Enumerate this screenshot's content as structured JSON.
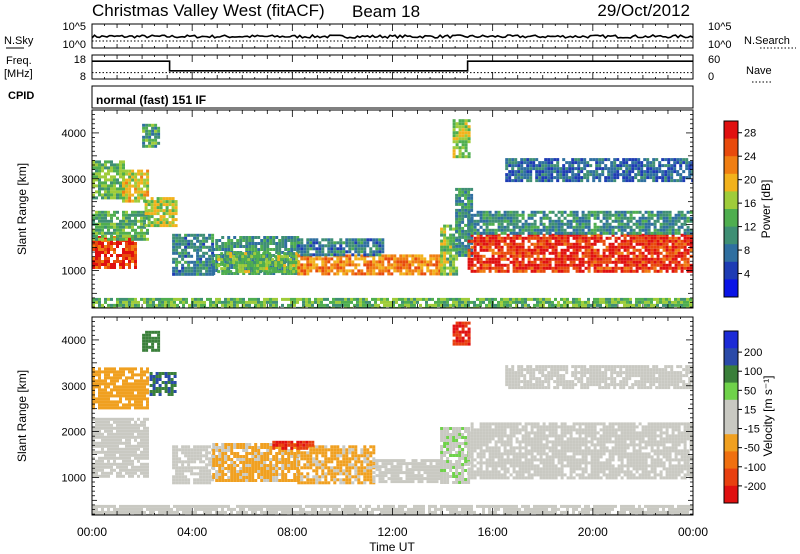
{
  "header": {
    "station": "Christmas Valley West (fitACF)",
    "beam": "Beam 18",
    "date": "29/Oct/2012"
  },
  "colors": {
    "power_scale": [
      "#0a14e6",
      "#1e3cb4",
      "#2f6fa0",
      "#3f8f74",
      "#4fae4f",
      "#9fcc3a",
      "#f2b21c",
      "#f07e12",
      "#e84a0c",
      "#e01010"
    ],
    "velocity_scale": [
      "#1c2bd6",
      "#2b4aa8",
      "#3a7f3a",
      "#6fd24a",
      "#c9c9c2",
      "#c9c9c2",
      "#f0a020",
      "#f07010",
      "#e84010",
      "#e01010"
    ]
  },
  "chart_data": [
    {
      "type": "line",
      "panel": "noise",
      "left_label": "N.Sky",
      "left_ticks": [
        "10^5",
        "10^0"
      ],
      "right_label": "N.Search",
      "right_ticks": [
        "10^5",
        "10^0"
      ],
      "series": [
        {
          "name": "N.Sky",
          "style": "solid"
        },
        {
          "name": "N.Search",
          "style": "dotted"
        }
      ]
    },
    {
      "type": "line",
      "panel": "frequency",
      "left_label_line1": "Freq.",
      "left_label_line2": "[MHz]",
      "left_ticks": [
        "18",
        "8"
      ],
      "left_ylim": [
        8,
        18
      ],
      "right_label": "Nave",
      "right_ticks": [
        "60",
        "0"
      ],
      "right_ylim": [
        0,
        60
      ],
      "x": [
        0,
        3.1,
        3.1,
        15.0,
        15.0,
        24
      ],
      "freq_mhz": [
        15.4,
        15.4,
        11.4,
        11.4,
        15.4,
        15.4
      ],
      "nave": [
        16,
        16,
        16,
        16,
        16,
        16
      ]
    },
    {
      "type": "text",
      "panel": "cpid",
      "label": "CPID",
      "value": "normal (fast) 151 IF"
    },
    {
      "type": "heatmap",
      "panel": "power",
      "ylabel": "Slant Range [km]",
      "yticks": [
        "1000",
        "2000",
        "3000",
        "4000"
      ],
      "ylim": [
        180,
        4500
      ],
      "xlim": [
        0,
        24
      ],
      "colorbar_label": "Power [dB]",
      "colorbar_ticks": [
        "4",
        "8",
        "12",
        "16",
        "20",
        "24",
        "28"
      ],
      "colorbar_range": [
        0,
        30
      ],
      "regions": [
        {
          "t0": 0.0,
          "t1": 1.7,
          "r0": 1050,
          "r1": 1750,
          "value": 26
        },
        {
          "t0": 0.0,
          "t1": 2.2,
          "r0": 1700,
          "r1": 2300,
          "value": 13
        },
        {
          "t0": 0.0,
          "t1": 1.2,
          "r0": 2600,
          "r1": 3400,
          "value": 14
        },
        {
          "t0": 1.2,
          "t1": 2.2,
          "r0": 2500,
          "r1": 3200,
          "value": 18
        },
        {
          "t0": 2.0,
          "t1": 2.6,
          "r0": 3700,
          "r1": 4200,
          "value": 12
        },
        {
          "t0": 2.1,
          "t1": 3.4,
          "r0": 2000,
          "r1": 2600,
          "value": 17
        },
        {
          "t0": 3.2,
          "t1": 4.8,
          "r0": 900,
          "r1": 1800,
          "value": 9
        },
        {
          "t0": 4.8,
          "t1": 8.2,
          "r0": 900,
          "r1": 1750,
          "value": 11
        },
        {
          "t0": 5.0,
          "t1": 8.2,
          "r0": 1000,
          "r1": 1400,
          "value": 15
        },
        {
          "t0": 8.2,
          "t1": 13.9,
          "r0": 900,
          "r1": 1350,
          "value": 22
        },
        {
          "t0": 8.2,
          "t1": 11.6,
          "r0": 1350,
          "r1": 1700,
          "value": 9
        },
        {
          "t0": 13.9,
          "t1": 14.5,
          "r0": 900,
          "r1": 2000,
          "value": 15
        },
        {
          "t0": 14.5,
          "t1": 15.2,
          "r0": 1300,
          "r1": 2800,
          "value": 10
        },
        {
          "t0": 14.4,
          "t1": 15.0,
          "r0": 3500,
          "r1": 4300,
          "value": 16
        },
        {
          "t0": 15.0,
          "t1": 24.0,
          "r0": 1000,
          "r1": 1800,
          "value": 27
        },
        {
          "t0": 15.0,
          "t1": 24.0,
          "r0": 1800,
          "r1": 2300,
          "value": 10
        },
        {
          "t0": 16.5,
          "t1": 24.0,
          "r0": 2950,
          "r1": 3450,
          "value": 7
        },
        {
          "t0": 0.0,
          "t1": 24.0,
          "r0": 180,
          "r1": 400,
          "value": 14
        }
      ]
    },
    {
      "type": "heatmap",
      "panel": "velocity",
      "ylabel": "Slant Range [km]",
      "yticks": [
        "1000",
        "2000",
        "3000",
        "4000"
      ],
      "ylim": [
        180,
        4500
      ],
      "xlim": [
        0,
        24
      ],
      "xlabel": "Time UT",
      "xticks": [
        "00:00",
        "04:00",
        "08:00",
        "12:00",
        "16:00",
        "20:00",
        "00:00"
      ],
      "colorbar_label": "Velocity [m s⁻¹]",
      "colorbar_ticks": [
        "200",
        "100",
        "50",
        "15",
        "-15",
        "-50",
        "-100",
        "-200"
      ],
      "colorbar_range": [
        -250,
        250
      ],
      "regions": [
        {
          "t0": 0.0,
          "t1": 2.2,
          "r0": 1000,
          "r1": 2300,
          "value": 0
        },
        {
          "t0": 0.0,
          "t1": 2.2,
          "r0": 2500,
          "r1": 3400,
          "value": -80
        },
        {
          "t0": 2.0,
          "t1": 2.6,
          "r0": 3800,
          "r1": 4200,
          "value": 120
        },
        {
          "t0": 2.3,
          "t1": 3.3,
          "r0": 2800,
          "r1": 3300,
          "value": 150
        },
        {
          "t0": 3.2,
          "t1": 4.8,
          "r0": 900,
          "r1": 1700,
          "value": 0
        },
        {
          "t0": 4.8,
          "t1": 8.2,
          "r0": 900,
          "r1": 1750,
          "value": -60
        },
        {
          "t0": 8.2,
          "t1": 11.2,
          "r0": 900,
          "r1": 1700,
          "value": -60
        },
        {
          "t0": 7.2,
          "t1": 8.8,
          "r0": 1650,
          "r1": 1800,
          "value": -200
        },
        {
          "t0": 11.2,
          "t1": 13.9,
          "r0": 900,
          "r1": 1400,
          "value": 0
        },
        {
          "t0": 13.9,
          "t1": 15.0,
          "r0": 900,
          "r1": 2100,
          "value": 40
        },
        {
          "t0": 14.4,
          "t1": 15.0,
          "r0": 3900,
          "r1": 4400,
          "value": -200
        },
        {
          "t0": 15.0,
          "t1": 24.0,
          "r0": 1000,
          "r1": 2200,
          "value": 0
        },
        {
          "t0": 16.5,
          "t1": 24.0,
          "r0": 2950,
          "r1": 3450,
          "value": -20
        },
        {
          "t0": 0.0,
          "t1": 24.0,
          "r0": 180,
          "r1": 400,
          "value": 30
        }
      ]
    }
  ]
}
